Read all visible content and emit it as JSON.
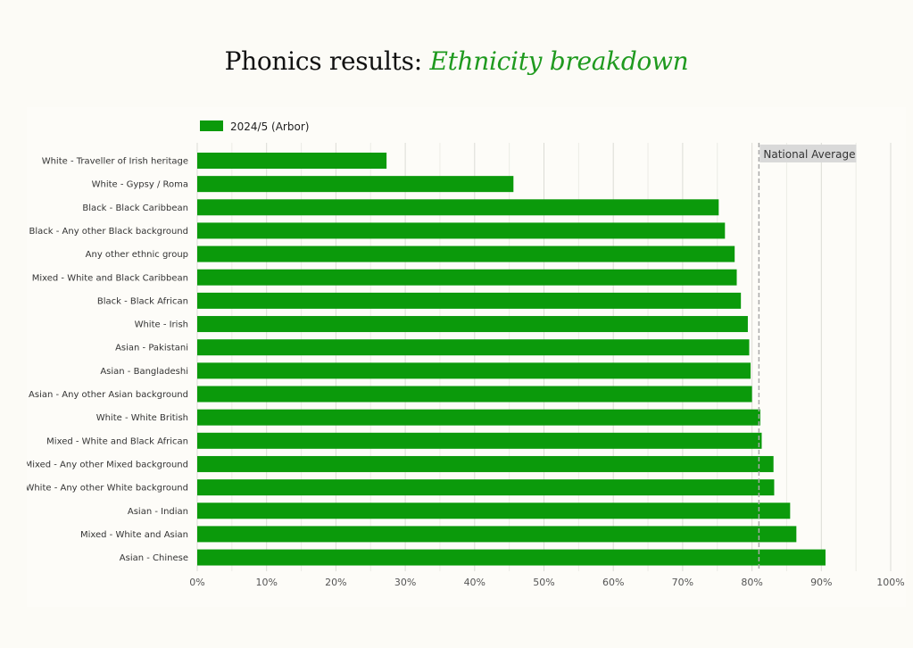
{
  "title": {
    "main": "Phonics results:",
    "accent": "Ethnicity breakdown"
  },
  "colors": {
    "bar": "#0b9a0b",
    "title_accent": "#1f9a1f",
    "reference_label_bg": "#d9d9d9"
  },
  "chart_data": {
    "type": "bar",
    "orientation": "horizontal",
    "legend": {
      "position": "top-left",
      "entries": [
        "2024/5 (Arbor)"
      ]
    },
    "categories": [
      "White - Traveller of Irish heritage",
      "White - Gypsy / Roma",
      "Black - Black Caribbean",
      "Black - Any other Black background",
      "Any other ethnic group",
      "Mixed - White and Black Caribbean",
      "Black - Black African",
      "White - Irish",
      "Asian - Pakistani",
      "Asian - Bangladeshi",
      "Asian - Any other Asian background",
      "White - White British",
      "Mixed - White and Black African",
      "Mixed - Any other Mixed background",
      "White - Any other White background",
      "Asian - Indian",
      "Mixed - White and Asian",
      "Asian - Chinese"
    ],
    "series": [
      {
        "name": "2024/5 (Arbor)",
        "values": [
          27.3,
          45.6,
          75.2,
          76.1,
          77.5,
          77.8,
          78.4,
          79.4,
          79.6,
          79.8,
          80.0,
          81.2,
          81.4,
          83.1,
          83.2,
          85.5,
          86.4,
          90.6
        ]
      }
    ],
    "reference_line": {
      "label": "National Average",
      "value": 81
    },
    "xlim": [
      0,
      100
    ],
    "xticks": [
      "0%",
      "10%",
      "20%",
      "30%",
      "40%",
      "50%",
      "60%",
      "70%",
      "80%",
      "90%",
      "100%"
    ],
    "grid": true,
    "xlabel": "",
    "ylabel": ""
  }
}
